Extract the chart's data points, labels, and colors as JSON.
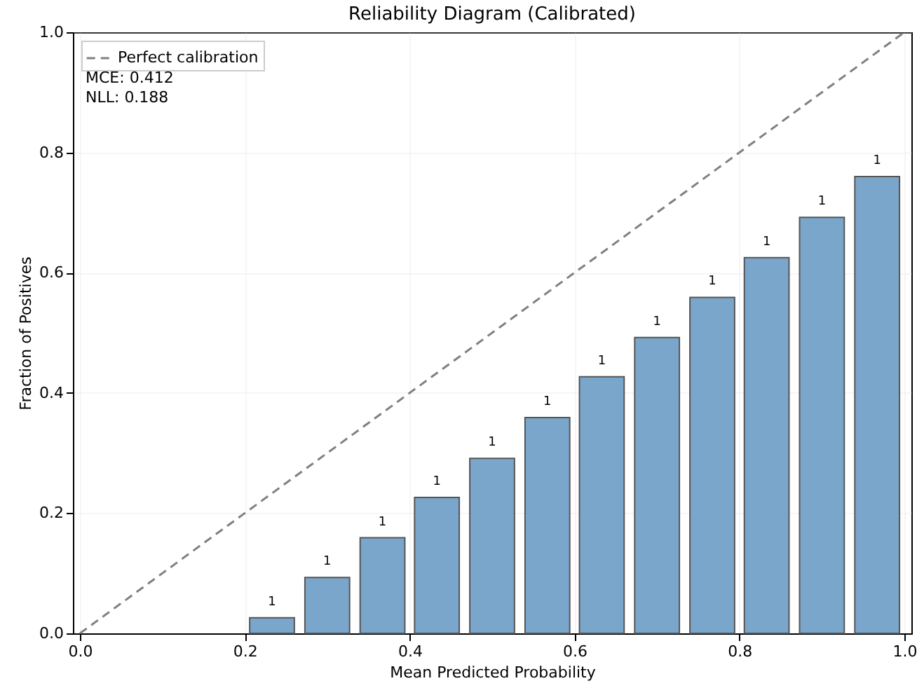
{
  "chart_data": {
    "type": "bar",
    "title": "Reliability Diagram (Calibrated)",
    "xlabel": "Mean Predicted Probability",
    "ylabel": "Fraction of Positives",
    "x": [
      0.233,
      0.3,
      0.367,
      0.433,
      0.5,
      0.567,
      0.633,
      0.7,
      0.767,
      0.833,
      0.9,
      0.967
    ],
    "series": [
      {
        "color": "#7ba6cb",
        "values": [
          0.026,
          0.093,
          0.159,
          0.226,
          0.291,
          0.359,
          0.427,
          0.492,
          0.559,
          0.625,
          0.692,
          0.76
        ]
      },
      {
        "type": "line",
        "name": "Perfect calibration",
        "color": "#808080",
        "line_style": "dashed",
        "x": [
          0,
          1
        ],
        "values": [
          0,
          1
        ]
      }
    ],
    "xlim": [
      0,
      1
    ],
    "ylim": [
      0,
      1
    ],
    "xticks": [
      {
        "value": 0,
        "label": "0.0"
      },
      {
        "value": 0.2,
        "label": "0.2"
      },
      {
        "value": 0.4,
        "label": "0.4"
      },
      {
        "value": 0.6,
        "label": "0.6"
      },
      {
        "value": 0.8,
        "label": "0.8"
      },
      {
        "value": 1,
        "label": "1.0"
      }
    ],
    "yticks": [
      {
        "value": 0,
        "label": "0.0"
      },
      {
        "value": 0.2,
        "label": "0.2"
      },
      {
        "value": 0.4,
        "label": "0.4"
      },
      {
        "value": 0.6,
        "label": "0.6"
      },
      {
        "value": 0.8,
        "label": "0.8"
      },
      {
        "value": 1,
        "label": "1.0"
      }
    ],
    "grid": true,
    "legend": "top left",
    "annotations": [
      "MCE: 0.412",
      "NLL: 0.188",
      {
        "text": "1",
        "x": 0.233,
        "y": 0.026
      },
      {
        "text": "1",
        "x": 0.3,
        "y": 0.093
      },
      {
        "text": "1",
        "x": 0.367,
        "y": 0.159
      },
      {
        "text": "1",
        "x": 0.433,
        "y": 0.226
      },
      {
        "text": "1",
        "x": 0.5,
        "y": 0.291
      },
      {
        "text": "1",
        "x": 0.567,
        "y": 0.359
      },
      {
        "text": "1",
        "x": 0.633,
        "y": 0.427
      },
      {
        "text": "1",
        "x": 0.7,
        "y": 0.492
      },
      {
        "text": "1",
        "x": 0.767,
        "y": 0.559
      },
      {
        "text": "1",
        "x": 0.833,
        "y": 0.625
      },
      {
        "text": "1",
        "x": 0.9,
        "y": 0.692
      },
      {
        "text": "1",
        "x": 0.967,
        "y": 0.76
      }
    ]
  }
}
